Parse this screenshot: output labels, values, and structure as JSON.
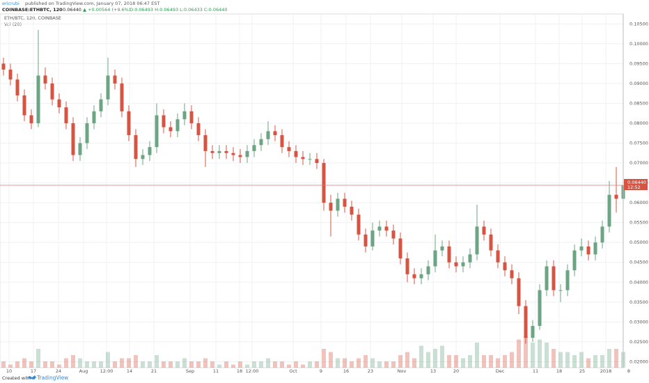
{
  "header": {
    "author": "ericrubi",
    "published": "published on TradingView.com, January 07, 2018 06:47 EST",
    "symbol": "COINBASE:ETHBTC, 120",
    "last": "0.06440",
    "change": "▲ +0.00564 (+9.6%)",
    "ohlc": "O:0.06493 H:0.06493 L:0.06433 C:0.06440"
  },
  "footer": {
    "created": "Created with",
    "brand": "TradingView"
  },
  "chart_data": {
    "type": "candlestick",
    "title": "ETH/BTC, 120, COINBASE",
    "volume_label": "Vol (20)",
    "up_color": "#6ba583",
    "down_color": "#d75442",
    "open": [
      0.095,
      0.0935,
      0.091,
      0.087,
      0.082,
      0.08,
      0.092,
      0.09,
      0.086,
      0.084,
      0.08,
      0.072,
      0.075,
      0.08,
      0.083,
      0.086,
      0.092,
      0.09,
      0.083,
      0.077,
      0.071,
      0.072,
      0.074,
      0.082,
      0.079,
      0.078,
      0.081,
      0.083,
      0.08,
      0.077,
      0.073,
      0.0725,
      0.073,
      0.0725,
      0.072,
      0.0715,
      0.073,
      0.0745,
      0.076,
      0.078,
      0.077,
      0.074,
      0.073,
      0.0715,
      0.071,
      0.071,
      0.07,
      0.06,
      0.058,
      0.061,
      0.059,
      0.057,
      0.052,
      0.049,
      0.053,
      0.054,
      0.053,
      0.051,
      0.046,
      0.042,
      0.041,
      0.042,
      0.044,
      0.048,
      0.049,
      0.045,
      0.044,
      0.045,
      0.047,
      0.054,
      0.052,
      0.048,
      0.045,
      0.043,
      0.041,
      0.034,
      0.026,
      0.029,
      0.038,
      0.044,
      0.038,
      0.038,
      0.043,
      0.048,
      0.049,
      0.047,
      0.05,
      0.054,
      0.062,
      0.061
    ],
    "high": [
      0.0965,
      0.095,
      0.0925,
      0.0885,
      0.0835,
      0.1035,
      0.094,
      0.0915,
      0.0875,
      0.0855,
      0.0815,
      0.0765,
      0.0815,
      0.0845,
      0.0875,
      0.0965,
      0.0935,
      0.0915,
      0.0845,
      0.0785,
      0.0735,
      0.0755,
      0.085,
      0.0835,
      0.0805,
      0.0825,
      0.085,
      0.0845,
      0.0815,
      0.0785,
      0.0745,
      0.0745,
      0.0745,
      0.074,
      0.0735,
      0.0745,
      0.076,
      0.0775,
      0.0805,
      0.0795,
      0.0785,
      0.0755,
      0.0745,
      0.073,
      0.0725,
      0.0725,
      0.071,
      0.062,
      0.0625,
      0.0625,
      0.0605,
      0.0585,
      0.0535,
      0.055,
      0.0555,
      0.0555,
      0.0545,
      0.0525,
      0.0475,
      0.0435,
      0.0435,
      0.0455,
      0.052,
      0.0505,
      0.0505,
      0.0465,
      0.0465,
      0.0485,
      0.0595,
      0.0555,
      0.0535,
      0.0495,
      0.0465,
      0.0445,
      0.0425,
      0.0355,
      0.0305,
      0.0395,
      0.0455,
      0.0455,
      0.0395,
      0.0445,
      0.0495,
      0.051,
      0.0505,
      0.0515,
      0.0555,
      0.0655,
      0.069,
      0.066
    ],
    "low": [
      0.092,
      0.0895,
      0.0855,
      0.0805,
      0.0785,
      0.079,
      0.0885,
      0.0845,
      0.0825,
      0.0785,
      0.0705,
      0.0705,
      0.0735,
      0.0785,
      0.0815,
      0.0845,
      0.0885,
      0.0815,
      0.0755,
      0.069,
      0.0695,
      0.0705,
      0.0725,
      0.0775,
      0.0765,
      0.0765,
      0.0795,
      0.0785,
      0.0755,
      0.069,
      0.071,
      0.071,
      0.071,
      0.0705,
      0.07,
      0.07,
      0.0715,
      0.073,
      0.0745,
      0.0755,
      0.0725,
      0.0715,
      0.07,
      0.0695,
      0.0695,
      0.0685,
      0.058,
      0.0515,
      0.0565,
      0.0575,
      0.0555,
      0.0505,
      0.0475,
      0.048,
      0.0515,
      0.0515,
      0.0495,
      0.0445,
      0.04,
      0.0395,
      0.0395,
      0.0405,
      0.0425,
      0.0465,
      0.0435,
      0.0425,
      0.0425,
      0.0435,
      0.0455,
      0.0505,
      0.0465,
      0.0435,
      0.0415,
      0.0395,
      0.032,
      0.0245,
      0.025,
      0.028,
      0.0365,
      0.0365,
      0.035,
      0.0365,
      0.0415,
      0.0465,
      0.0455,
      0.0455,
      0.0485,
      0.0525,
      0.0575,
      0.0595
    ],
    "close": [
      0.0935,
      0.091,
      0.087,
      0.082,
      0.08,
      0.092,
      0.09,
      0.086,
      0.084,
      0.08,
      0.072,
      0.075,
      0.08,
      0.083,
      0.086,
      0.092,
      0.09,
      0.083,
      0.077,
      0.071,
      0.072,
      0.074,
      0.082,
      0.079,
      0.078,
      0.081,
      0.083,
      0.08,
      0.077,
      0.073,
      0.0725,
      0.073,
      0.0725,
      0.072,
      0.0715,
      0.073,
      0.0745,
      0.076,
      0.078,
      0.077,
      0.074,
      0.073,
      0.0715,
      0.071,
      0.071,
      0.07,
      0.06,
      0.058,
      0.061,
      0.059,
      0.057,
      0.052,
      0.049,
      0.053,
      0.054,
      0.053,
      0.051,
      0.046,
      0.042,
      0.041,
      0.042,
      0.044,
      0.048,
      0.049,
      0.045,
      0.044,
      0.045,
      0.047,
      0.054,
      0.052,
      0.048,
      0.045,
      0.043,
      0.041,
      0.034,
      0.026,
      0.029,
      0.038,
      0.044,
      0.038,
      0.038,
      0.043,
      0.048,
      0.049,
      0.047,
      0.05,
      0.054,
      0.062,
      0.061,
      0.0644
    ],
    "volume": [
      2,
      1,
      2,
      3,
      2,
      6,
      2,
      2,
      1,
      3,
      4,
      3,
      2,
      2,
      2,
      5,
      2,
      3,
      3,
      4,
      2,
      2,
      4,
      2,
      2,
      2,
      3,
      2,
      2,
      3,
      2,
      1,
      2,
      1,
      2,
      1,
      2,
      2,
      3,
      2,
      2,
      1,
      2,
      1,
      2,
      2,
      6,
      5,
      3,
      3,
      2,
      3,
      4,
      3,
      2,
      2,
      2,
      4,
      5,
      3,
      7,
      5,
      6,
      7,
      4,
      4,
      3,
      4,
      8,
      4,
      4,
      3,
      4,
      5,
      9,
      10,
      8,
      9,
      8,
      6,
      5,
      5,
      4,
      5,
      3,
      4,
      4,
      6,
      6,
      5
    ],
    "last_price": 0.0644,
    "last_price_label": "0.06440",
    "countdown": "12:52",
    "ylim": [
      0.0185,
      0.1075
    ],
    "yticks": [
      {
        "value": 0.02,
        "label": "0.02000"
      },
      {
        "value": 0.025,
        "label": "0.02500"
      },
      {
        "value": 0.03,
        "label": "0.03000"
      },
      {
        "value": 0.035,
        "label": "0.03500"
      },
      {
        "value": 0.04,
        "label": "0.04000"
      },
      {
        "value": 0.045,
        "label": "0.04500"
      },
      {
        "value": 0.05,
        "label": "0.05000"
      },
      {
        "value": 0.055,
        "label": "0.05500"
      },
      {
        "value": 0.06,
        "label": "0.06000"
      },
      {
        "value": 0.065,
        "label": "0.06500"
      },
      {
        "value": 0.07,
        "label": "0.07000"
      },
      {
        "value": 0.075,
        "label": "0.07500"
      },
      {
        "value": 0.08,
        "label": "0.08000"
      },
      {
        "value": 0.085,
        "label": "0.08500"
      },
      {
        "value": 0.09,
        "label": "0.09000"
      },
      {
        "value": 0.095,
        "label": "0.09500"
      },
      {
        "value": 0.1,
        "label": "0.10000"
      },
      {
        "value": 0.105,
        "label": "0.10500"
      }
    ],
    "xticks": [
      {
        "value": 0.8,
        "label": "10"
      },
      {
        "value": 4.3,
        "label": "17"
      },
      {
        "value": 7.9,
        "label": "24"
      },
      {
        "value": 11.5,
        "label": "Aug"
      },
      {
        "value": 14.8,
        "label": "12:00"
      },
      {
        "value": 18.1,
        "label": "14"
      },
      {
        "value": 21.6,
        "label": "21"
      },
      {
        "value": 26.8,
        "label": "Sep"
      },
      {
        "value": 30.5,
        "label": "11"
      },
      {
        "value": 33.9,
        "label": "18"
      },
      {
        "value": 35.7,
        "label": "12:00"
      },
      {
        "value": 41.6,
        "label": "Oct"
      },
      {
        "value": 45.6,
        "label": "9"
      },
      {
        "value": 49.2,
        "label": "16"
      },
      {
        "value": 52.7,
        "label": "23"
      },
      {
        "value": 57.2,
        "label": "Nov"
      },
      {
        "value": 61.7,
        "label": "13"
      },
      {
        "value": 65,
        "label": "20"
      },
      {
        "value": 71.3,
        "label": "Dec"
      },
      {
        "value": 76.4,
        "label": "11"
      },
      {
        "value": 79.8,
        "label": "18"
      },
      {
        "value": 83.1,
        "label": "25"
      },
      {
        "value": 86.5,
        "label": "2018"
      },
      {
        "value": 89.8,
        "label": "8"
      }
    ],
    "grid": true
  }
}
